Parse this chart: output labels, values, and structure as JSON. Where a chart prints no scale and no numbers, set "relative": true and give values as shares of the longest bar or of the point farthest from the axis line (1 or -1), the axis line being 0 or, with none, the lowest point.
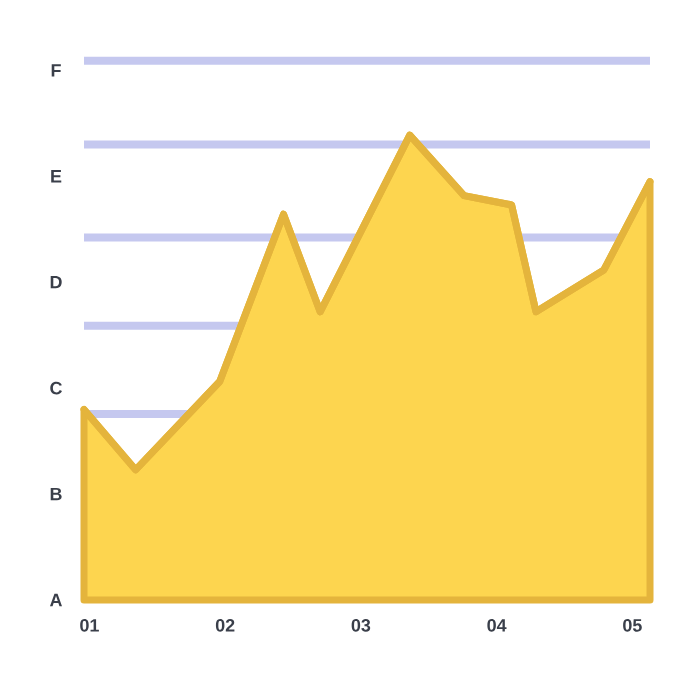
{
  "chart_data": {
    "type": "area",
    "relative": true,
    "x": [
      0.96,
      1.34,
      1.96,
      2.43,
      2.7,
      3.36,
      3.76,
      4.11,
      4.29,
      4.79,
      5.13
    ],
    "series": [
      {
        "color": "#fdd54f",
        "values": [
          0.41,
          0.28,
          0.47,
          0.83,
          0.62,
          1,
          0.87,
          0.85,
          0.62,
          0.71,
          0.9
        ]
      }
    ],
    "xlim": [
      0.96,
      5.13
    ],
    "xticks": [
      {
        "value": 1,
        "label": "01"
      },
      {
        "value": 2,
        "label": "02"
      },
      {
        "value": 3,
        "label": "03"
      },
      {
        "value": 4,
        "label": "04"
      },
      {
        "value": 5,
        "label": "05"
      }
    ],
    "annotations": [
      "A",
      "B",
      "C",
      "D",
      "E",
      "F"
    ],
    "ref_lines": [
      {
        "axis": "y",
        "value": 1.16,
        "color": "#c5c8ef"
      },
      {
        "axis": "y",
        "value": 0.98,
        "color": "#c5c8ef"
      },
      {
        "axis": "y",
        "value": 0.78,
        "color": "#c5c8ef"
      },
      {
        "axis": "y",
        "value": 0.59,
        "color": "#c5c8ef"
      },
      {
        "axis": "y",
        "value": 0.4,
        "color": "#c5c8ef"
      }
    ],
    "grid": false
  }
}
